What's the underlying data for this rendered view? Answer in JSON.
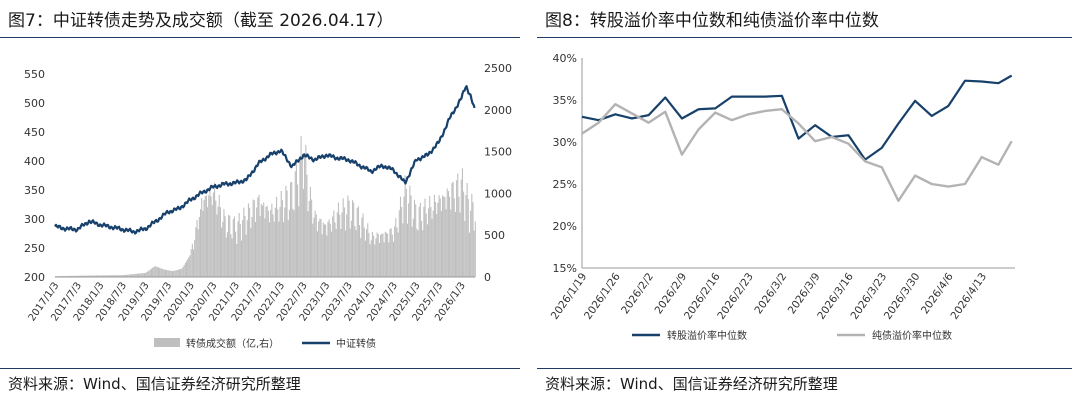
{
  "left": {
    "title": "图7：中证转债走势及成交额（截至 2026.04.17）",
    "source": "资料来源：Wind、国信证券经济研究所整理"
  },
  "right": {
    "title": "图8：转股溢价率中位数和纯债溢价率中位数",
    "source": "资料来源：Wind、国信证券经济研究所整理"
  },
  "colors": {
    "navy": "#17406b",
    "gray": "#b3b3b3",
    "rule": "#1f3b63",
    "bar": "#bfbfbf"
  },
  "chart_data": [
    {
      "type": "bar+line",
      "title": "图7：中证转债走势及成交额（截至 2026.04.17）",
      "x_ticks": [
        "2017/1/3",
        "2017/7/3",
        "2018/1/3",
        "2018/7/3",
        "2019/1/3",
        "2019/7/3",
        "2020/1/3",
        "2020/7/3",
        "2021/1/3",
        "2021/7/3",
        "2022/1/3",
        "2022/7/3",
        "2023/1/3",
        "2023/7/3",
        "2024/1/3",
        "2024/7/3",
        "2025/1/3",
        "2025/7/3",
        "2026/1/3"
      ],
      "y_left": {
        "lim": [
          200,
          560
        ],
        "ticks": [
          200,
          250,
          300,
          350,
          400,
          450,
          500,
          550
        ]
      },
      "y_right": {
        "lim": [
          0,
          2500
        ],
        "ticks": [
          0,
          500,
          1000,
          1500,
          2000,
          2500
        ]
      },
      "legend": [
        "转债成交额（亿,右）",
        "中证转债"
      ],
      "series": [
        {
          "name": "中证转债",
          "axis": "left",
          "x": [
            2017.0,
            2017.25,
            2017.5,
            2017.75,
            2018.0,
            2018.25,
            2018.5,
            2018.75,
            2019.0,
            2019.25,
            2019.5,
            2019.75,
            2020.0,
            2020.25,
            2020.5,
            2020.75,
            2021.0,
            2021.25,
            2021.5,
            2021.75,
            2022.0,
            2022.25,
            2022.5,
            2022.75,
            2023.0,
            2023.25,
            2023.5,
            2023.75,
            2024.0,
            2024.25,
            2024.5,
            2024.75,
            2025.0,
            2025.25,
            2025.5,
            2025.75,
            2026.0,
            2026.1,
            2026.2,
            2026.29
          ],
          "y": [
            287,
            283,
            282,
            296,
            290,
            286,
            282,
            278,
            283,
            297,
            312,
            318,
            333,
            345,
            355,
            360,
            362,
            368,
            395,
            410,
            418,
            390,
            410,
            402,
            410,
            405,
            402,
            392,
            382,
            392,
            384,
            362,
            402,
            410,
            432,
            475,
            508,
            530,
            512,
            488
          ]
        },
        {
          "name": "转债成交额（亿,右）",
          "axis": "right",
          "x": [
            2017.0,
            2017.5,
            2018.0,
            2018.5,
            2019.0,
            2019.2,
            2019.4,
            2019.6,
            2019.8,
            2020.0,
            2020.25,
            2020.5,
            2020.75,
            2021.0,
            2021.25,
            2021.5,
            2021.75,
            2022.0,
            2022.25,
            2022.5,
            2022.6,
            2022.75,
            2023.0,
            2023.25,
            2023.5,
            2023.75,
            2024.0,
            2024.25,
            2024.5,
            2024.75,
            2025.0,
            2025.25,
            2025.5,
            2025.75,
            2026.0,
            2026.15,
            2026.29
          ],
          "y": [
            10,
            15,
            20,
            22,
            50,
            130,
            90,
            70,
            100,
            280,
            900,
            1000,
            640,
            580,
            720,
            900,
            760,
            850,
            960,
            1500,
            1000,
            700,
            600,
            740,
            800,
            670,
            460,
            500,
            540,
            1000,
            700,
            800,
            900,
            1000,
            1080,
            850,
            750
          ]
        }
      ]
    },
    {
      "type": "line",
      "title": "图8：转股溢价率中位数和纯债溢价率中位数",
      "x_ticks": [
        "2026/1/19",
        "2026/1/26",
        "2026/2/2",
        "2026/2/9",
        "2026/2/16",
        "2026/2/23",
        "2026/3/2",
        "2026/3/9",
        "2026/3/16",
        "2026/3/23",
        "2026/3/30",
        "2026/4/6",
        "2026/4/13"
      ],
      "ylim": [
        15,
        40
      ],
      "y_ticks": [
        "15%",
        "20%",
        "25%",
        "30%",
        "35%",
        "40%"
      ],
      "legend": [
        "转股溢价率中位数",
        "纯债溢价率中位数"
      ],
      "series": [
        {
          "name": "转股溢价率中位数",
          "x": [
            0.0,
            0.5,
            1.0,
            1.5,
            2.0,
            2.5,
            3.0,
            3.5,
            4.0,
            4.5,
            5.0,
            5.5,
            6.0,
            6.5,
            7.0,
            7.5,
            8.0,
            8.5,
            9.0,
            9.5,
            10.0,
            10.5,
            11.0,
            11.5,
            12.0,
            12.5,
            12.9
          ],
          "y": [
            33.0,
            32.6,
            33.3,
            32.8,
            33.2,
            35.3,
            32.8,
            33.9,
            34.0,
            35.4,
            35.4,
            35.4,
            35.5,
            30.4,
            32.0,
            30.6,
            30.8,
            27.9,
            29.3,
            32.2,
            34.9,
            33.1,
            34.3,
            37.3,
            37.2,
            37.0,
            37.9
          ]
        },
        {
          "name": "纯债溢价率中位数",
          "x": [
            0.0,
            0.5,
            1.0,
            1.5,
            2.0,
            2.5,
            3.0,
            3.5,
            4.0,
            4.5,
            5.0,
            5.5,
            6.0,
            6.5,
            7.0,
            7.5,
            8.0,
            8.5,
            9.0,
            9.5,
            10.0,
            10.5,
            11.0,
            11.5,
            12.0,
            12.5,
            12.9
          ],
          "y": [
            31.0,
            32.3,
            34.5,
            33.4,
            32.3,
            33.6,
            28.5,
            31.5,
            33.5,
            32.6,
            33.3,
            33.7,
            33.9,
            32.2,
            30.1,
            30.6,
            29.8,
            27.7,
            27.0,
            23.0,
            26.0,
            25.0,
            24.7,
            25.0,
            28.2,
            27.3,
            30.1
          ]
        }
      ]
    }
  ]
}
